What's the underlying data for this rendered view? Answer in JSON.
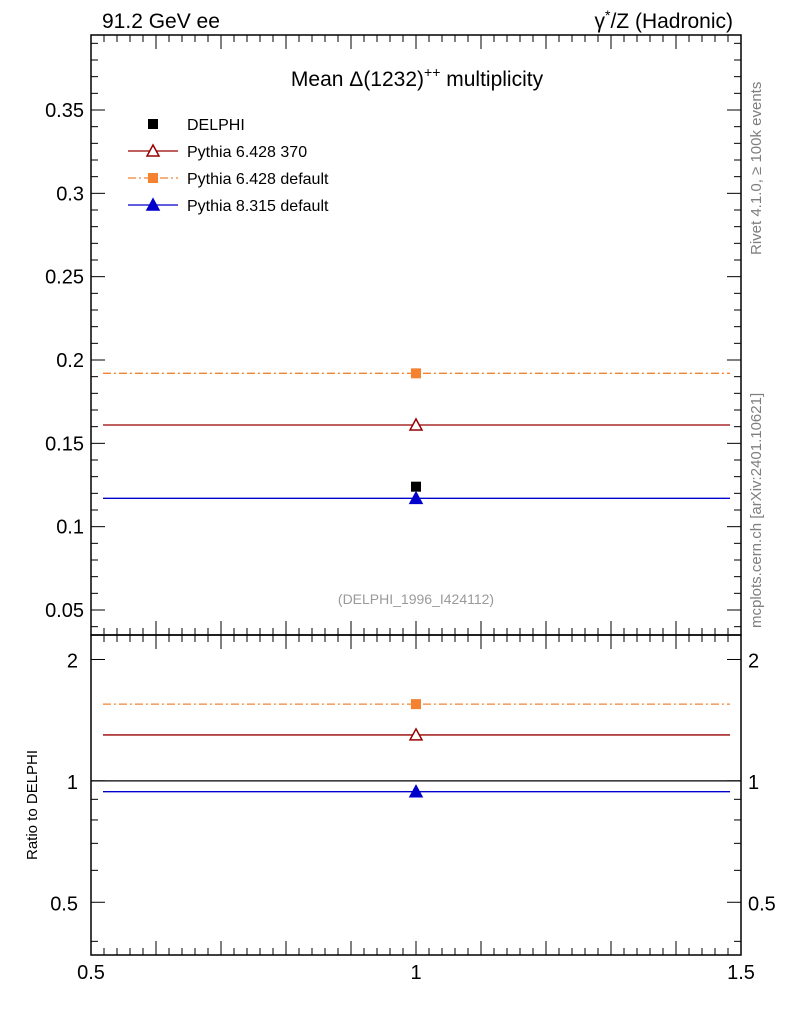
{
  "header": {
    "left": "91.2 GeV ee",
    "right_prefix": "γ",
    "right_sup": "*",
    "right_suffix": "/Z (Hadronic)"
  },
  "side_labels": {
    "rivet": "Rivet 4.1.0, ≥ 100k events",
    "mcplots": "mcplots.cern.ch [arXiv:2401.10621]"
  },
  "chart_data": [
    {
      "type": "scatter",
      "title_prefix": "Mean Δ(1232)",
      "title_sup": "++",
      "title_suffix": " multiplicity",
      "watermark": "(DELPHI_1996_I424112)",
      "xlim": [
        0.5,
        1.5
      ],
      "ylim": [
        0.035,
        0.395
      ],
      "yticks": [
        "0.05",
        "0.1",
        "0.15",
        "0.2",
        "0.25",
        "0.3",
        "0.35"
      ],
      "x_tick_labels": [
        "0.5",
        "1",
        "1.5"
      ],
      "series": [
        {
          "name": "DELPHI",
          "x": 1.0,
          "y": 0.124,
          "xerr": [
            0,
            0
          ],
          "color": "#000000",
          "marker": "square",
          "line": "none"
        },
        {
          "name": "Pythia 6.428 370",
          "x": 1.0,
          "y": 0.161,
          "xerr": [
            0.5,
            0.5
          ],
          "color": "#990000",
          "marker": "open-triangle",
          "line": "solid"
        },
        {
          "name": "Pythia 6.428 default",
          "x": 1.0,
          "y": 0.192,
          "xerr": [
            0.5,
            0.5
          ],
          "color": "#f58231",
          "marker": "square",
          "line": "dashdot"
        },
        {
          "name": "Pythia 8.315 default",
          "x": 1.0,
          "y": 0.117,
          "xerr": [
            0.5,
            0.5
          ],
          "color": "#0000cc",
          "marker": "triangle",
          "line": "solid"
        }
      ]
    },
    {
      "type": "scatter",
      "ylabel": "Ratio to DELPHI",
      "xlim": [
        0.5,
        1.5
      ],
      "ylim": [
        0.37,
        2.3
      ],
      "yticks": [
        "0.5",
        "1",
        "2"
      ],
      "series": [
        {
          "name": "Pythia 6.428 370",
          "x": 1.0,
          "y": 1.3,
          "color": "#990000",
          "marker": "open-triangle",
          "line": "solid"
        },
        {
          "name": "Pythia 6.428 default",
          "x": 1.0,
          "y": 1.55,
          "color": "#f58231",
          "marker": "square",
          "line": "dashdot"
        },
        {
          "name": "Pythia 8.315 default",
          "x": 1.0,
          "y": 0.94,
          "color": "#0000cc",
          "marker": "triangle",
          "line": "solid"
        }
      ]
    }
  ]
}
